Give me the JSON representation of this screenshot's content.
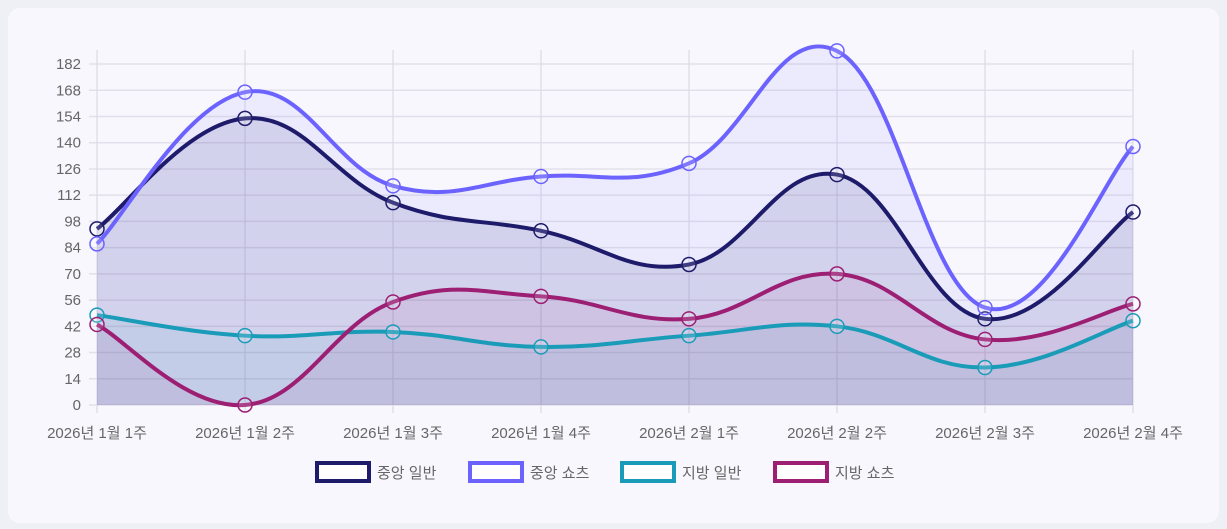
{
  "chart_data": {
    "type": "line",
    "title": "",
    "xlabel": "",
    "ylabel": "",
    "categories": [
      "2026년 1월 1주",
      "2026년 1월 2주",
      "2026년 1월 3주",
      "2026년 1월 4주",
      "2026년 2월 1주",
      "2026년 2월 2주",
      "2026년 2월 3주",
      "2026년 2월 4주"
    ],
    "yticks": [
      0,
      14,
      28,
      42,
      56,
      70,
      84,
      98,
      112,
      126,
      140,
      154,
      168,
      182
    ],
    "ylim": [
      0,
      189.5
    ],
    "grid": true,
    "legend_position": "bottom",
    "series": [
      {
        "name": "중앙 일반",
        "color": "#1e1b6b",
        "fill": "rgba(30,27,107,0.12)",
        "values": [
          94,
          153,
          108,
          93,
          75,
          123,
          46,
          103
        ]
      },
      {
        "name": "중앙 쇼츠",
        "color": "#6c63ff",
        "fill": "rgba(108,99,255,0.08)",
        "values": [
          86,
          167,
          117,
          122,
          129,
          189,
          52,
          138
        ]
      },
      {
        "name": "지방 일반",
        "color": "#1a9bb8",
        "fill": "rgba(26,155,184,0.08)",
        "values": [
          48,
          37,
          39,
          31,
          37,
          42,
          20,
          45
        ]
      },
      {
        "name": "지방 쇼츠",
        "color": "#9c1f74",
        "fill": "rgba(156,31,116,0.08)",
        "values": [
          43,
          0,
          55,
          58,
          46,
          70,
          35,
          54
        ]
      }
    ]
  }
}
